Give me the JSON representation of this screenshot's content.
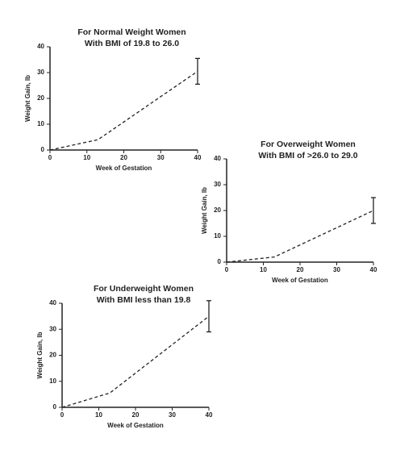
{
  "chart_data": [
    {
      "type": "line",
      "title": "For Normal Weight Women",
      "subtitle": "With BMI of 19.8 to 26.0",
      "x_label": "Week of Gestation",
      "y_label": "Weight Gain, lb",
      "x": [
        0,
        13,
        40
      ],
      "series": [
        {
          "color": "#222222",
          "values": [
            0,
            4,
            30.5
          ],
          "errors": [
            null,
            null,
            5
          ]
        }
      ],
      "xlim": [
        0,
        40
      ],
      "xticks": [
        0,
        10,
        20,
        30,
        40
      ],
      "ylim": [
        0,
        40
      ],
      "yticks": [
        0,
        10,
        20,
        30,
        40
      ]
    },
    {
      "type": "line",
      "title": "For Overweight Women",
      "subtitle": "With BMI of >26.0 to 29.0",
      "x_label": "Week of Gestation",
      "y_label": "Weight Gain, lb",
      "x": [
        0,
        13,
        40
      ],
      "series": [
        {
          "color": "#222222",
          "values": [
            0,
            2,
            20
          ],
          "errors": [
            null,
            null,
            5
          ]
        }
      ],
      "xlim": [
        0,
        40
      ],
      "xticks": [
        0,
        10,
        20,
        30,
        40
      ],
      "ylim": [
        0,
        40
      ],
      "yticks": [
        0,
        10,
        20,
        30,
        40
      ]
    },
    {
      "type": "line",
      "title": "For Underweight Women",
      "subtitle": "With BMI less than 19.8",
      "x_label": "Week of Gestation",
      "y_label": "Weight Gain, lb",
      "x": [
        0,
        13,
        40
      ],
      "series": [
        {
          "color": "#222222",
          "values": [
            0,
            5.5,
            35
          ],
          "errors": [
            null,
            null,
            6
          ]
        }
      ],
      "xlim": [
        0,
        40
      ],
      "xticks": [
        0,
        10,
        20,
        30,
        40
      ],
      "ylim": [
        0,
        40
      ],
      "yticks": [
        0,
        10,
        20,
        30,
        40
      ]
    }
  ]
}
